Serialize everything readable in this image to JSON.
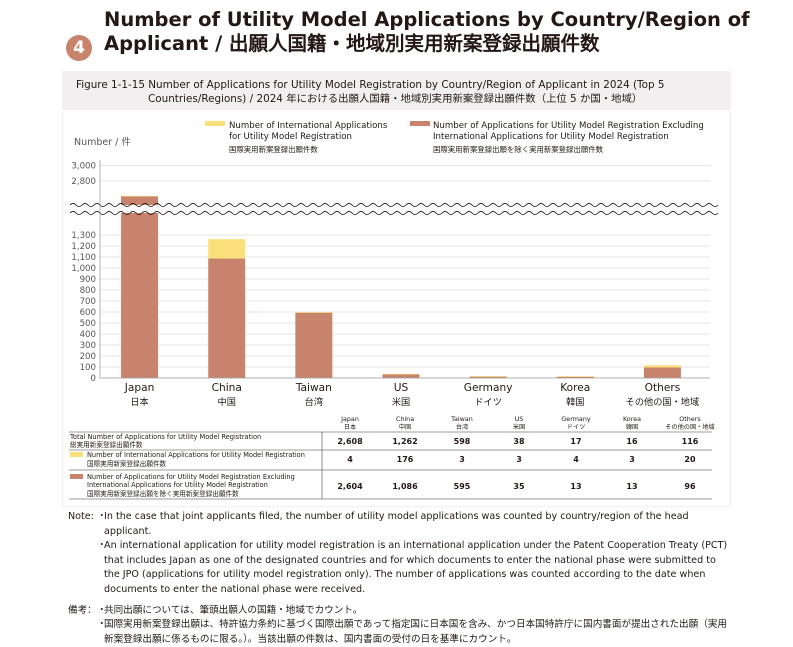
{
  "header": {
    "number": "4",
    "title_line1": "Number of Utility Model Applications by Country/Region of",
    "title_line2": "Applicant / 出願人国籍・地域別実用新案登録出願件数"
  },
  "figure": {
    "title_line1": "Figure 1-1-15  Number of Applications for Utility Model Registration by Country/Region of Applicant in 2024 (Top 5",
    "title_line2": "Countries/Regions) / 2024 年における出願人国籍・地域別実用新案登録出願件数（上位 5 か国・地域）"
  },
  "chart_data": {
    "type": "bar",
    "stacked": true,
    "broken_axis": [
      1300,
      2800
    ],
    "ylabel": "Number / 件",
    "ylim": [
      0,
      3000
    ],
    "yticks": [
      0,
      100,
      200,
      300,
      400,
      500,
      600,
      700,
      800,
      900,
      1000,
      1100,
      1200,
      1300,
      2800,
      3000
    ],
    "ytick_labels": [
      "0",
      "100",
      "200",
      "300",
      "400",
      "500",
      "600",
      "700",
      "800",
      "900",
      "1,000",
      "1,100",
      "1,200",
      "1,300",
      "2,800",
      "3,000"
    ],
    "categories": [
      "Japan",
      "China",
      "Taiwan",
      "US",
      "Germany",
      "Korea",
      "Others"
    ],
    "categories_ja": [
      "日本",
      "中国",
      "台湾",
      "米国",
      "ドイツ",
      "韓国",
      "その他の国・地域"
    ],
    "series": [
      {
        "name": "Number of Applications for Utility Model Registration Excluding International Applications for Utility Model Registration",
        "name_ja": "国際実用新案登録出願を除く実用新案登録出願件数",
        "color": "#c7836c",
        "values": [
          2604,
          1086,
          595,
          35,
          13,
          13,
          96
        ]
      },
      {
        "name": "Number of International Applications for Utility Model Registration",
        "name_ja": "国際実用新案登録出願件数",
        "color": "#fbdf7b",
        "values": [
          4,
          176,
          3,
          3,
          4,
          3,
          20
        ]
      }
    ],
    "legend": "top"
  },
  "legend": {
    "intl_l1": "Number of International Applications",
    "intl_l2": "for Utility Model Registration",
    "intl_ja": "国際実用新案登録出願件数",
    "excl_l1": "Number of Applications for Utility Model Registration Excluding",
    "excl_l2": "International Applications for Utility Model Registration",
    "excl_ja": "国際実用新案登録出願を除く実用新案登録出願件数"
  },
  "table": {
    "col_en": [
      "Japan",
      "China",
      "Taiwan",
      "US",
      "Germany",
      "Korea",
      "Others"
    ],
    "col_ja": [
      "日本",
      "中国",
      "台湾",
      "米国",
      "ドイツ",
      "韓国",
      "その他の国・地域"
    ],
    "rows": [
      {
        "label_l1": "Total Number of Applications for Utility Model Registration",
        "label_l2": "総実用新案登録出願件数",
        "values": [
          "2,608",
          "1,262",
          "598",
          "38",
          "17",
          "16",
          "116"
        ]
      },
      {
        "label_l1": "Number of International Applications for Utility Model Registration",
        "label_l2": "国際実用新案登録出願件数",
        "values": [
          "4",
          "176",
          "3",
          "3",
          "4",
          "3",
          "20"
        ]
      },
      {
        "label_l1": "Number of Applications for Utility Model Registration Excluding",
        "label_l2": "International Applications for Utility Model Registration",
        "label_l3": "国際実用新案登録出願を除く実用新案登録出願件数",
        "values": [
          "2,604",
          "1,086",
          "595",
          "35",
          "13",
          "13",
          "96"
        ]
      }
    ]
  },
  "notes": {
    "en_label": "Note:",
    "en_1": "In the case that joint applicants filed, the number of utility model applications was counted by country/region of the head applicant.",
    "en_2": "An international application for utility model registration is an international application under the Patent Cooperation Treaty (PCT) that includes Japan as one of the designated countries and for which documents to enter the national phase were submitted to the JPO (applications for utility model registration only). The number of applications was counted according to the date when documents to enter the national phase were received.",
    "ja_label": "備考：",
    "ja_1": "共同出願については、筆頭出願人の国籍・地域でカウント。",
    "ja_2": "国際実用新案登録出願は、特許協力条約に基づく国際出願であって指定国に日本国を含み、かつ日本国特許庁に国内書面が提出された出願（実用新案登録出願に係るものに限る。）。当該出願の件数は、国内書面の受付の日を基準にカウント。"
  }
}
